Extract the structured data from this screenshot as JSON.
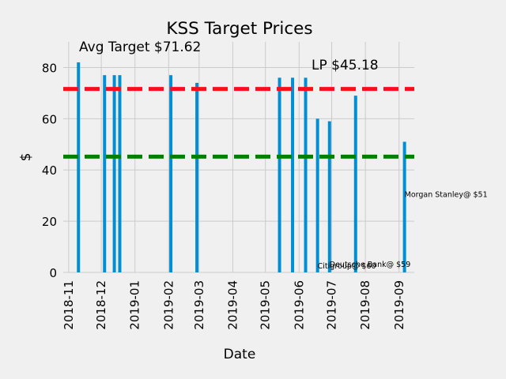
{
  "chart_data": {
    "type": "bar",
    "title": "KSS Target Prices",
    "xlabel": "Date",
    "ylabel": "$",
    "xlim": [
      "2018-10-27",
      "2019-09-15"
    ],
    "ylim": [
      0,
      90
    ],
    "yticks": [
      0,
      20,
      40,
      60,
      80
    ],
    "xticks": [
      "2018-11",
      "2018-12",
      "2019-01",
      "2019-02",
      "2019-03",
      "2019-04",
      "2019-05",
      "2019-06",
      "2019-07",
      "2019-08",
      "2019-09"
    ],
    "grid": true,
    "bar_color": "#008fd5",
    "bars": [
      {
        "date": "2018-11-10",
        "value": 82
      },
      {
        "date": "2018-12-04",
        "value": 77
      },
      {
        "date": "2018-12-13",
        "value": 77
      },
      {
        "date": "2018-12-18",
        "value": 77
      },
      {
        "date": "2019-02-03",
        "value": 77
      },
      {
        "date": "2019-02-27",
        "value": 74
      },
      {
        "date": "2019-05-14",
        "value": 76
      },
      {
        "date": "2019-05-26",
        "value": 76
      },
      {
        "date": "2019-06-07",
        "value": 76
      },
      {
        "date": "2019-06-18",
        "value": 60
      },
      {
        "date": "2019-06-29",
        "value": 59
      },
      {
        "date": "2019-07-23",
        "value": 69
      },
      {
        "date": "2019-09-06",
        "value": 51
      }
    ],
    "reference_lines": [
      {
        "value": 71.62,
        "color": "#fc0d1b",
        "label": "Avg Target $71.62"
      },
      {
        "value": 45.18,
        "color": "#008000",
        "label": "LP $45.18"
      }
    ],
    "annotations": [
      {
        "text": "Citigroup@ $60",
        "date": "2019-06-18",
        "value": 1.5
      },
      {
        "text": "Deutsche Bank@ $59",
        "date": "2019-06-29",
        "value": 2.2
      },
      {
        "text": "Morgan Stanley@ $51",
        "date": "2019-09-06",
        "value": 29.5
      }
    ]
  }
}
